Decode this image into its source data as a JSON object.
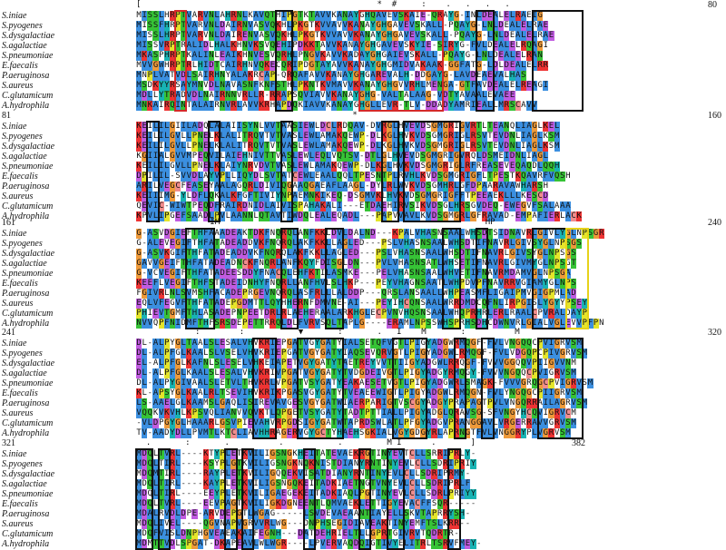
{
  "species": [
    "S.iniae",
    "S.pyogenes",
    "S.dysgalactiae",
    "S.agalactiae",
    "S.pneumoniae",
    "E.faecalis",
    "P.aeruginosa",
    "S.aureus",
    "C.glutamicum",
    "A.hydrophila"
  ],
  "blocks": [
    {
      "start": "",
      "end": "80",
      "marks": "[                                                *  #     :    .   .   .   .",
      "seqs": [
        "MISSLHRPTVARVNLAHRNLKAVQTHIPGTKTAVVKANAYGHQAVEVSKAIE-QRAYG-INLDEALELRAEIG",
        "MISSFHRPTVARVNLDAIRNVASVQKHLPKGTKVVAVVKANAYGHGAVEVSKALL-PQAYG-LNLDEALELRAE",
        "MISSLHRPTVARVNLDAIRENVASVQKHLPKGTKVVAVVKANAYGHGAVEVSKALL-PQAYG-LNLDEALELRAE",
        "MISSVRPTRALIDLHALKHNVKSVQEHIPDKKTAVVKANAYGHGAVEVSKYIE-SIRYG-FVLDEALELRQAGI",
        "MKASPHRPTKALINLEAIKHNVESVQRHLPNGVKAVVKADAYGHGAIEVSKALL-PQAYG-LNLDEALELRAN",
        "MVVGWHRPTRLHIDTCAIRHNVQKECQRIPDGTAYAVVKANAYGHGMIDVAKAAK-GGFATG-LDLDEALELRR",
        "MNPLVATVDLSAIRHNYALAKRCAP-QRQAFAVVKANAYGHGAREVALH-DDGAYG-LAVDEAEVALHAS",
        "MSDKYYRSAYMNVDLNAVASNFKNFSTHLPKNTKVMAVVKANAYGHGVVRHLMENGA-GTFAVDEALELREAGI",
        "MDLLYTRADVDLNAIRNNVRLLR-RRAPSQVIAVVKANAYGHG-VALTALAAG-VDTYAVAALEVAEE",
        "MNKAIRQINTALAIRNVRLAVVKRHAPDQKIAVVKANAYGHGLLEVR-TLV-DDADYAMRIEALLMRSCAVV"
      ],
      "boxes": [
        {
          "c0": 7,
          "c1": 8,
          "color": "red"
        },
        {
          "c0": 25,
          "c1": 27,
          "color": "black"
        },
        {
          "c0": 40,
          "c1": 54,
          "color": "red"
        },
        {
          "c0": 61,
          "c1": 63,
          "color": "black"
        },
        {
          "c0": 71,
          "c1": 79,
          "color": "black"
        }
      ]
    },
    {
      "start": "81",
      "end": "160",
      "marks": "                                            *",
      "seqs": [
        "KEILILGIILADQLALAIISYNLVVTAASIEWLDCLRDQAV-DVRGLHVEVDSGMGRIGVRTLTEANQLIAGLKEL",
        "KEILILGVLLPNELKLALITRQVTVTVASLEWLAMAKQEWP-DLKGLHVKVDSGMGRIGLRSVTEVDNLIAGLKSM",
        "KEILILGVLLPNELKLALITRQVTVTVASLEWLAMAKQEWP-DLKGLHVKVDSGMGRIGLRSVTEVDNLIAGLKSM",
        "KGIIALGVVMPEQVILAIEHNIVTTVASLEWLEQLVQTSV-DTLGLHVEVDSGMGRIGVRQLDSMEIDNLIAGL",
        "KEILILGVLLPNELKLAIYNRVDVTVASLEWLAMAKQEWP-DLKGLHVKVDSGMGRIGLRFREASEVEQAQDLQQH",
        "DPILIL-SVVDLAYVPLLIQYDLSVTATCEWLEAALQQLTPESNTPLRVHLKVDSGMGRIGFLTPESTKQAVRFVQSH",
        "ARILVEGCFEASEYAALAGQRLDIVIQGAAQGAEAFLAAGL-DYLRLWVKVDSGMHRLGFDPAARAVAWHARSH",
        "KEIIIMG-YLDFLQKALKFGFTIVIYNPAEMNKIKEQ-DSGMVKLHVKVDSGMGRIGFFTPEEAEKLLLKESCD",
        "QEVIC-WIWTPEQDFRAIRDNIDLAIVISPAHAKALI---ETDAEHIRVSIKVDSGLHRSGVDEQ-EWEGVFSALAAA",
        "KPVLIPGEFSAADLPVLAANNLQTAVTIWDQLEALEQADL---PAPVVAVLKVDSGMGRLGFRAVAD-EMPAFIERLACK"
      ],
      "boxes": [
        {
          "c0": 2,
          "c1": 3,
          "color": "black"
        },
        {
          "c0": 13,
          "c1": 14,
          "color": "black"
        },
        {
          "c0": 26,
          "c1": 27,
          "color": "black"
        },
        {
          "c0": 44,
          "c1": 46,
          "color": "black"
        },
        {
          "c0": 48,
          "c1": 57,
          "color": "black"
        }
      ]
    },
    {
      "start": "161",
      "end": "240",
      "marks": "               IM                                                      HP",
      "seqs": [
        "G-ASVDGIEFTHFAAADEAKTDKFNQRQLANFKKLDVLDALND---KPALVHASNSAALWHSDTSIDNAVRLGIVLYGLNPSGR",
        "G-ALEVEGIFTHFATADEADDVKFNQRQLAKFKKLLAGLED---PSLVHASNSAALWHSDTIFNAVRLGIVSYGLNPSGS",
        "G-ASVKGIFTHFATADEADDVKFNQRQLAKFKKLLAGLED---PSLVHASNSAALWHSDTIFNAVRLGIVSYGLNPSGS",
        "GAVVGEIFTHFATADEADNCKFNQRLANFKQYFDISGLDN---PVLVHASNSATLWHSETIFNAVRLGIVMYGLNPSGT",
        "G-VCVEGIFTHFATADEESDDYFNACQLEHFKTILASMKE---PELVHASNSAALWHVETIFNAVRMDAMVGLNPSGA",
        "KEEFLVEGIFTHFSTADEIDNHYFNQRLLANFHVLSLHKP---PEYVHAGNSAATLWHPDVPFNAVRRVGIAMYGLNPS",
        "FGIVRLNLSVMSHFACADEPRGEVNQRQLASFRLLLALDDP---QRSLANSAALLWHPEASMFLIGAIPMVGIGPMLAD",
        "EQLVFEGVFTHFATADEPGDMTTLQYHHERNFDMVNE-AI---PEYIHCQNSAALWRRDMDCQFNLIRPGISLYGYYPSEY",
        "PHIEVTGMFTHLASADEPNPEETDRLRLAEHERAALARKHGLECPVNVHQSNSAALWHQPRHRLERLRAALCPVRALDAYP",
        "NVVQPFNIDMFTHFSRSDEPETTRRQLDLFVRVSQLTAPLG----ERAMLNPSSWHSPRHSDHCDWNVRLGIALVGLEVVPFPN"
      ],
      "boxes": [
        {
          "c0": 9,
          "c1": 13,
          "color": "black"
        },
        {
          "c0": 26,
          "c1": 28,
          "color": "black"
        },
        {
          "c0": 34,
          "c1": 36,
          "color": "black"
        },
        {
          "c0": 55,
          "c1": 57,
          "color": "black"
        },
        {
          "c0": 61,
          "c1": 62,
          "color": "black"
        },
        {
          "c0": 71,
          "c1": 76,
          "color": "black"
        },
        {
          "c0": 77,
          "c1": 80,
          "color": "yellow"
        }
      ]
    },
    {
      "start": "241",
      "end": "320",
      "marks": "            :        :           ▼       :       .   I    M       :          M",
      "seqs": [
        "DL-ALPYGLTAALSLESALVHVKRIEPGATVGYGATYIALSETQFVGTLPIGYADGWRMQGF-FVLVNGQQCPVIGRVSM",
        "DL-ALPFGLKAALSLVSELVHVKRIEPGATVGYGATYIAQSEVQRVGTLPIGYADGWLRMQGF-FVLVDGQPCPIVGRVSM",
        "EL-ALPFGLKAFNLSLESELVHKEIAPETVGYGATYTAETREYVVTTIIGYADGWLRRQGF-FVVVGGQQVPIIGVVNM",
        "DL-ALPFGLKAALSLESALVHVKRIVPGATVGYGATYTVDGDEIVGTLPIGYADGYRMQGY-FVVVNGQQCPVIGRVSM",
        "DL-ALPYGIVAALSLETVLTHVKRLVPGATVSYGATYEAKAESETVGTLPIGYADGWRLSMAGK-FVVVGRQGCPVIGRVSM",
        "KL-APSYGLKAALRLTSEVIHVKRIKPGASVGYGATYTVEAEEWIGTLPIGYADGWLRMQGN-FVLYNGQGCPIIGRVSM",
        "LS-AAELGLKAAMSLGAQLISIREVAVGESVGYGATWIAERPARIGTVSCGYADGYPRAPAGTPVLVNGQRRAILAGRVSM",
        "VQQKVKVHLKPSVQLIANVVQVKTLQPGETVSYGATYTADTPTTIALLPIGYADGLQRAVSG-SFVNGYHCQVIGRVCM",
        "-VLDPGYGLHAAARLGSVPIEVAHVRPGDSIGYGATWTAPRDSWLATLPFGYADGVPRANGGAVLVRGERRAVVGRVSM",
        "TV-AADYDLLPVMTLKTCLIAVHHRAGERVGYGCTYHAEHSGKIALVGYGDGYRLAPRNGTFVLVNGGRYPLVGRVSM"
      ],
      "boxes": [
        {
          "c0": 21,
          "c1": 24,
          "color": "black"
        },
        {
          "c0": 29,
          "c1": 36,
          "color": "black"
        },
        {
          "c0": 46,
          "c1": 51,
          "color": "black"
        },
        {
          "c0": 57,
          "c1": 58,
          "color": "black"
        },
        {
          "c0": 62,
          "c1": 63,
          "color": "black"
        },
        {
          "c0": 72,
          "c1": 79,
          "color": "black"
        }
      ]
    },
    {
      "start": "321",
      "end": "382",
      "marks": "  .       :       .          .           .         M I      .       ]",
      "seqs": [
        "MDQLTVRL----KTYPLETKVILIGSNGKHEITATEVAEKRGTINYEVTCLLSRRIPRLY-",
        "MDQLTIRL----KSYPLGTKVILIGSNGKNQKNISTDIANYRNTINYEVLCLLSDRIPRIY",
        "MDQMTIRL----RAYPLETKVILIGQQEKVISATDIANYRNTINYEVLCLLSDRIPRMY-",
        "MDQLTIRL----KAYPLETKVILIGSNGQKEITADKIAETNGTVNYEVLCLLSDRIPRLF",
        "MDQLTIRL----EEYPLETKVILIGAEGEKEITADKIAQLPGTINYEVLCLLSDRLPRIYY",
        "MDQLTVRL----EEVPAGTKVILIGKDGNEENTLQMVAEKLETTIGYEVACFFSQR-----",
        "MDALRVDLDPE-ARVDEPGTLWGAG-----LSVDEVAEAANTIAYELLSKVTAPRRYSH-",
        "MDQLIVEL----QGVNAPVGRVVRLWG---DNPHSEGIDIAVEAKTINYEMFTSLKRR--",
        "MDQFVISLDNPHGVEAEAKAIFEGNH---DATDEHRIELTLLGPRTGIVRVTQDRTR-",
        "MDMTTVDLSPGAT-DKAPEAVLWLWGR----LPVERVAQDQIGTIVYELITRLTSRVFMEY-"
      ],
      "boxes": [
        {
          "c0": 0,
          "c1": 2,
          "color": "black"
        },
        {
          "c0": 4,
          "c1": 5,
          "color": "black"
        },
        {
          "c0": 16,
          "c1": 17,
          "color": "black"
        },
        {
          "c0": 19,
          "c1": 20,
          "color": "black"
        },
        {
          "c0": 30,
          "c1": 31,
          "color": "black"
        },
        {
          "c0": 40,
          "c1": 41,
          "color": "black"
        },
        {
          "c0": 45,
          "c1": 47,
          "color": "black"
        },
        {
          "c0": 56,
          "c1": 57,
          "color": "black"
        }
      ]
    }
  ]
}
